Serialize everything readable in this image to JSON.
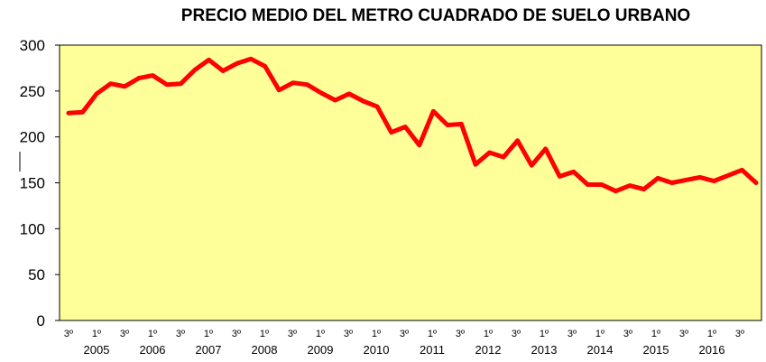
{
  "chart_data": {
    "type": "line",
    "title": "PRECIO MEDIO DEL METRO CUADRADO DE SUELO URBANO",
    "ylim": [
      0,
      300
    ],
    "yticks": [
      0,
      50,
      100,
      150,
      200,
      250,
      300
    ],
    "grid": false,
    "background_color": "#FFFF99",
    "line_color": "#FF0000",
    "quarter_labels": [
      "3º",
      "1º",
      "3º",
      "1º",
      "3º",
      "1º",
      "3º",
      "1º",
      "3º",
      "1º",
      "3º",
      "1º",
      "3º",
      "1º",
      "3º",
      "1º",
      "3º",
      "1º",
      "3º",
      "1º",
      "3º",
      "1º",
      "3º",
      "1º",
      "3º"
    ],
    "year_labels": [
      "2005",
      "2006",
      "2007",
      "2008",
      "2009",
      "2010",
      "2011",
      "2012",
      "2013",
      "2014",
      "2015",
      "2016"
    ],
    "series": [
      {
        "values": [
          226,
          227,
          247,
          258,
          255,
          264,
          267,
          257,
          258,
          273,
          284,
          272,
          280,
          285,
          277,
          251,
          259,
          257,
          248,
          240,
          247,
          239,
          233,
          205,
          211,
          191,
          228,
          213,
          214,
          170,
          183,
          178,
          196,
          169,
          187,
          157,
          162,
          148,
          148,
          141,
          147,
          143,
          155,
          150,
          153,
          156,
          152,
          158,
          164,
          150
        ]
      }
    ]
  }
}
